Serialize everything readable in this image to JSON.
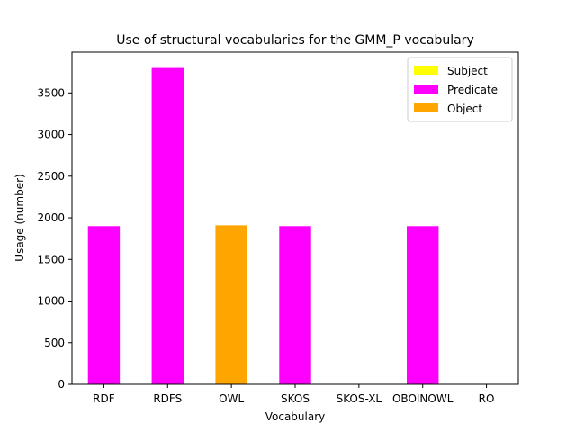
{
  "chart_data": {
    "type": "bar",
    "title": "Use of structural vocabularies for the GMM_P vocabulary",
    "xlabel": "Vocabulary",
    "ylabel": "Usage (number)",
    "categories": [
      "RDF",
      "RDFS",
      "OWL",
      "SKOS",
      "SKOS-XL",
      "OBOINOWL",
      "RO"
    ],
    "series": [
      {
        "name": "Subject",
        "color": "#ffff00",
        "values": [
          0,
          0,
          0,
          0,
          0,
          0,
          0
        ]
      },
      {
        "name": "Predicate",
        "color": "#ff00ff",
        "values": [
          1900,
          3800,
          0,
          1900,
          0,
          1900,
          0
        ]
      },
      {
        "name": "Object",
        "color": "#ffa500",
        "values": [
          0,
          0,
          1910,
          0,
          0,
          0,
          0
        ]
      }
    ],
    "ylim": [
      0,
      3990
    ],
    "yticks": [
      0,
      500,
      1000,
      1500,
      2000,
      2500,
      3000,
      3500
    ],
    "grid": false,
    "legend_position": "top-right",
    "stacked": true
  }
}
